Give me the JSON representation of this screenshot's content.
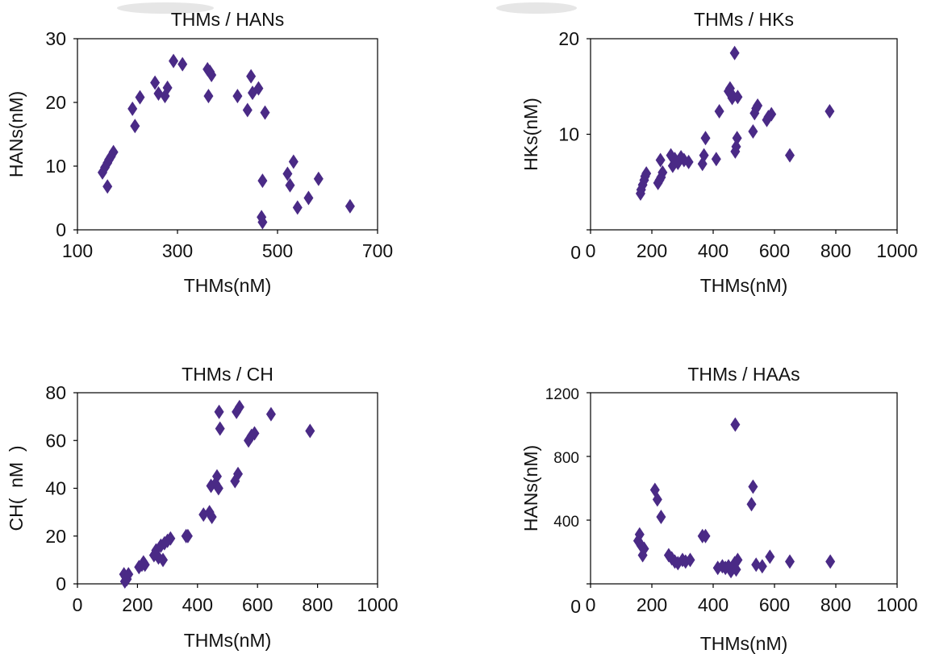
{
  "chart_data": [
    {
      "type": "scatter",
      "title": "THMs / HANs",
      "xlabel": "THMs(nM)",
      "ylabel": "HANs(nM)",
      "xlim": [
        100,
        700
      ],
      "ylim": [
        0,
        30
      ],
      "xticks": [
        "100",
        "300",
        "500",
        "700"
      ],
      "yticks": [
        "0",
        "10",
        "20",
        "30"
      ],
      "marker_color": "#4a2a86",
      "grid": false,
      "series": [
        {
          "x": [
            150,
            155,
            160,
            163,
            167,
            172,
            160,
            210,
            215,
            225,
            255,
            262,
            275,
            280,
            292,
            310,
            360,
            365,
            368,
            362,
            420,
            440,
            447,
            450,
            462,
            475,
            470,
            468,
            470,
            520,
            525,
            532,
            540,
            562,
            582,
            645
          ],
          "y": [
            9.0,
            9.8,
            10.5,
            11.0,
            11.5,
            12.2,
            6.8,
            19.0,
            16.3,
            20.8,
            23.1,
            21.4,
            21.0,
            22.3,
            26.5,
            26.0,
            25.2,
            24.8,
            24.3,
            21.0,
            21.0,
            18.8,
            24.1,
            21.5,
            22.2,
            18.4,
            7.7,
            2.0,
            1.2,
            8.8,
            7.0,
            10.7,
            3.5,
            5.0,
            8.0,
            3.7
          ]
        }
      ]
    },
    {
      "type": "scatter",
      "title": "THMs / HKs",
      "xlabel": "THMs(nM)",
      "ylabel": "HKs(nM)",
      "xlim": [
        0,
        1000
      ],
      "ylim": [
        0,
        20
      ],
      "xticks": [
        "0",
        "200",
        "400",
        "600",
        "800",
        "1000"
      ],
      "yticks": [
        "0",
        "10",
        "20"
      ],
      "marker_color": "#4a2a86",
      "grid": false,
      "series": [
        {
          "x": [
            163,
            165,
            170,
            175,
            178,
            182,
            220,
            225,
            230,
            235,
            228,
            262,
            268,
            275,
            285,
            295,
            305,
            320,
            365,
            370,
            375,
            410,
            420,
            450,
            455,
            460,
            462,
            470,
            472,
            475,
            478,
            480,
            530,
            535,
            540,
            545,
            575,
            580,
            590,
            650,
            780
          ],
          "y": [
            3.8,
            4.2,
            4.7,
            5.2,
            5.6,
            5.9,
            4.9,
            5.2,
            5.5,
            6.0,
            7.3,
            7.8,
            6.7,
            7.4,
            7.0,
            7.6,
            7.3,
            7.1,
            6.9,
            7.8,
            9.6,
            7.4,
            12.4,
            14.5,
            14.8,
            14.2,
            13.8,
            18.5,
            8.2,
            8.7,
            9.6,
            13.9,
            10.3,
            12.2,
            12.7,
            13.0,
            11.5,
            11.8,
            12.1,
            7.8,
            12.4
          ]
        }
      ]
    },
    {
      "type": "scatter",
      "title": "THMs / CH",
      "xlabel": "THMs(nM)",
      "ylabel": "CH(  nM  )",
      "xlim": [
        0,
        1000
      ],
      "ylim": [
        0,
        80
      ],
      "xticks": [
        "0",
        "200",
        "400",
        "600",
        "800",
        "1000"
      ],
      "yticks": [
        "0",
        "20",
        "40",
        "60",
        "80"
      ],
      "marker_color": "#4a2a86",
      "grid": false,
      "series": [
        {
          "x": [
            155,
            160,
            165,
            170,
            158,
            205,
            215,
            220,
            225,
            255,
            262,
            270,
            278,
            285,
            290,
            300,
            310,
            362,
            368,
            420,
            440,
            445,
            448,
            460,
            465,
            470,
            472,
            475,
            525,
            530,
            535,
            540,
            570,
            580,
            590,
            645,
            775
          ],
          "y": [
            4,
            3,
            2,
            4,
            1,
            7,
            8,
            9,
            8,
            12,
            14,
            11,
            16,
            10,
            17,
            18,
            19,
            20,
            20,
            29,
            30,
            41,
            28,
            42,
            45,
            40,
            72,
            65,
            43,
            72,
            46,
            74,
            60,
            62,
            63,
            71,
            64
          ]
        }
      ]
    },
    {
      "type": "scatter",
      "title": "THMs / HAAs",
      "xlabel": "THMs(nM)",
      "ylabel": "HANs(nM)",
      "xlim": [
        0,
        1000
      ],
      "ylim": [
        0,
        1200
      ],
      "xticks": [
        "0",
        "200",
        "400",
        "600",
        "800",
        "1000"
      ],
      "yticks": [
        "0",
        "400",
        "800",
        "1200"
      ],
      "marker_color": "#4a2a86",
      "grid": false,
      "series": [
        {
          "x": [
            155,
            160,
            165,
            170,
            175,
            210,
            218,
            230,
            255,
            265,
            275,
            285,
            300,
            310,
            325,
            365,
            375,
            415,
            430,
            440,
            450,
            458,
            465,
            470,
            472,
            475,
            480,
            525,
            530,
            540,
            560,
            585,
            650,
            782
          ],
          "y": [
            270,
            310,
            240,
            180,
            220,
            590,
            530,
            420,
            180,
            160,
            140,
            130,
            150,
            140,
            150,
            300,
            300,
            100,
            110,
            100,
            110,
            80,
            100,
            130,
            1000,
            90,
            150,
            500,
            610,
            120,
            110,
            170,
            140,
            140
          ]
        }
      ]
    }
  ]
}
